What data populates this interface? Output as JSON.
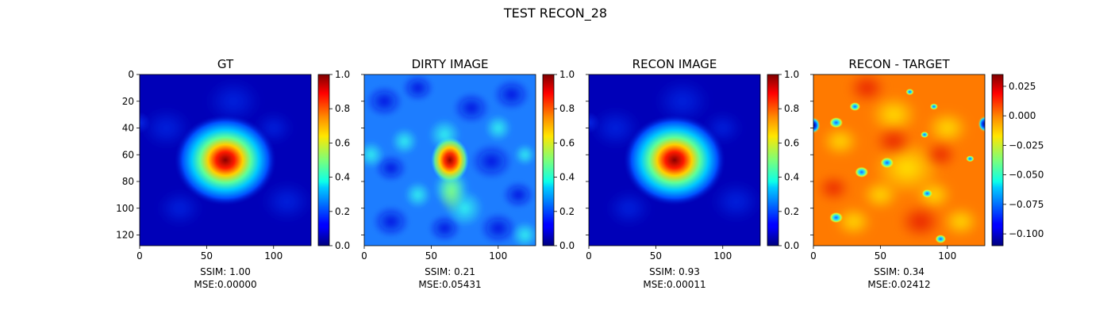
{
  "figure": {
    "suptitle": "TEST RECON_28"
  },
  "colormap": "jet",
  "chart_data": [
    {
      "type": "heatmap",
      "title": "GT",
      "xticks": [
        "0",
        "50",
        "100"
      ],
      "yticks": [
        "0",
        "20",
        "40",
        "60",
        "80",
        "100",
        "120"
      ],
      "xlim": [
        0,
        128
      ],
      "ylim": [
        128,
        0
      ],
      "colorbar": {
        "min": 0.0,
        "max": 1.0,
        "ticks": [
          "0.0",
          "0.2",
          "0.4",
          "0.6",
          "0.8",
          "1.0"
        ]
      },
      "metrics": {
        "ssim": "SSIM: 1.00",
        "mse": "MSE:0.00000"
      }
    },
    {
      "type": "heatmap",
      "title": "DIRTY IMAGE",
      "xticks": [
        "0",
        "50",
        "100"
      ],
      "xlim": [
        0,
        128
      ],
      "ylim": [
        128,
        0
      ],
      "colorbar": {
        "min": 0.0,
        "max": 1.0,
        "ticks": [
          "0.0",
          "0.2",
          "0.4",
          "0.6",
          "0.8",
          "1.0"
        ]
      },
      "metrics": {
        "ssim": "SSIM: 0.21",
        "mse": "MSE:0.05431"
      }
    },
    {
      "type": "heatmap",
      "title": "RECON IMAGE",
      "xticks": [
        "0",
        "50",
        "100"
      ],
      "xlim": [
        0,
        128
      ],
      "ylim": [
        128,
        0
      ],
      "colorbar": {
        "min": 0.0,
        "max": 1.0,
        "ticks": [
          "0.0",
          "0.2",
          "0.4",
          "0.6",
          "0.8",
          "1.0"
        ]
      },
      "metrics": {
        "ssim": "SSIM: 0.93",
        "mse": "MSE:0.00011"
      }
    },
    {
      "type": "heatmap",
      "title": "RECON - TARGET",
      "xticks": [
        "0",
        "50",
        "100"
      ],
      "xlim": [
        0,
        128
      ],
      "ylim": [
        128,
        0
      ],
      "colorbar": {
        "min": -0.11,
        "max": 0.035,
        "ticks": [
          "0.025",
          "0.000",
          "−0.025",
          "−0.050",
          "−0.075",
          "−0.100"
        ],
        "tick_values": [
          0.025,
          0.0,
          -0.025,
          -0.05,
          -0.075,
          -0.1
        ]
      },
      "metrics": {
        "ssim": "SSIM: 0.34",
        "mse": "MSE:0.02412"
      }
    }
  ]
}
